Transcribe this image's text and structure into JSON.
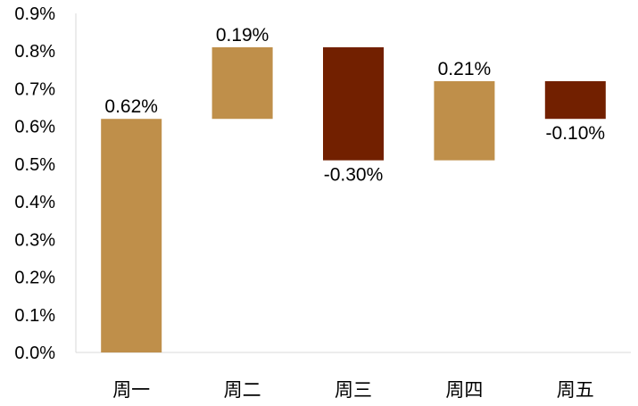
{
  "chart_data": {
    "type": "bar",
    "subtype": "waterfall",
    "categories": [
      "周一",
      "周二",
      "周三",
      "周四",
      "周五"
    ],
    "changes": [
      0.62,
      0.19,
      -0.3,
      0.21,
      -0.1
    ],
    "bar_ranges": [
      [
        0.0,
        0.62
      ],
      [
        0.62,
        0.81
      ],
      [
        0.51,
        0.81
      ],
      [
        0.51,
        0.72
      ],
      [
        0.62,
        0.72
      ]
    ],
    "data_labels": [
      "0.62%",
      "0.19%",
      "-0.30%",
      "0.21%",
      "-0.10%"
    ],
    "y_ticks": [
      "0.0%",
      "0.1%",
      "0.2%",
      "0.3%",
      "0.4%",
      "0.5%",
      "0.6%",
      "0.7%",
      "0.8%",
      "0.9%"
    ],
    "ylim": [
      0,
      0.9
    ],
    "grid": false,
    "legend": "none",
    "colors": {
      "increase": "#BF8F4A",
      "decrease": "#722000",
      "axis": "#D9D9D9",
      "text": "#000000"
    }
  }
}
